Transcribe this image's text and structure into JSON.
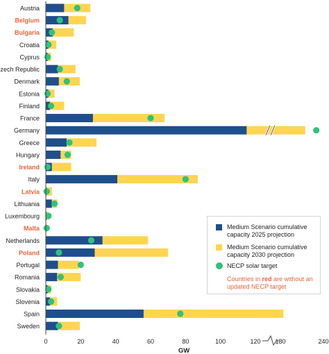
{
  "chart_data": {
    "type": "bar",
    "orientation": "horizontal",
    "stacked": true,
    "xlabel": "GW",
    "axis_break": {
      "from": 120,
      "to": 180
    },
    "xticks": [
      0,
      20,
      40,
      60,
      80,
      100,
      120,
      180,
      240
    ],
    "grid": false,
    "legend_position": "bottom-right",
    "colors": {
      "s2025": "#1f4e8c",
      "s2030": "#ffd54f",
      "target": "#2ec27e",
      "highlight": "#e8643c",
      "text": "#222222",
      "axis": "#444444"
    },
    "categories": [
      "Austria",
      "Belgium",
      "Bulgaria",
      "Croatia",
      "Cyprus",
      "Czech Republic",
      "Denmark",
      "Estonia",
      "Finland",
      "France",
      "Germany",
      "Greece",
      "Hungary",
      "Ireland",
      "Italy",
      "Latvia",
      "Lithuania",
      "Luxembourg",
      "Malta",
      "Netherlands",
      "Poland",
      "Portugal",
      "Romania",
      "Slovakia",
      "Slovenia",
      "Spain",
      "Sweden"
    ],
    "highlighted": [
      false,
      true,
      true,
      false,
      false,
      false,
      false,
      false,
      false,
      false,
      false,
      false,
      false,
      true,
      false,
      true,
      false,
      false,
      true,
      false,
      true,
      false,
      false,
      false,
      false,
      false,
      false
    ],
    "series": [
      {
        "name": "Medium Scenario cumulative capacity 2025 projection",
        "values": [
          10.5,
          13,
          4,
          1.5,
          1,
          7,
          7.5,
          1.5,
          2.5,
          27,
          115,
          12,
          8.5,
          3.5,
          41,
          0.5,
          3.5,
          0.5,
          0.3,
          32.5,
          28,
          7,
          6.5,
          1,
          2.5,
          56,
          7
        ]
      },
      {
        "name": "Medium Scenario cumulative capacity 2030 projection",
        "values": [
          15,
          10,
          12,
          4.5,
          2,
          10,
          12,
          3.5,
          8,
          41,
          39.5,
          17,
          6,
          11,
          46,
          3,
          3,
          1.2,
          0.4,
          26,
          42,
          12,
          13.5,
          2,
          4,
          68,
          12.5
        ]
      },
      {
        "name": "NECP solar target",
        "values": [
          18,
          8,
          3.5,
          1.5,
          1,
          8,
          12,
          1,
          3,
          60,
          230,
          13.5,
          12.5,
          1,
          80,
          0.5,
          5,
          1.5,
          0.5,
          26,
          7.5,
          20,
          8.5,
          1.5,
          3,
          77,
          7.5
        ]
      }
    ]
  },
  "legend": {
    "s2025_label": "Medium Scenario cumulative capacity 2025 projection",
    "s2030_label": "Medium Scenario cumulative capacity 2030 projection",
    "target_label": "NECP solar target",
    "note_prefix": "Countries in ",
    "note_red": "red",
    "note_suffix": " are without an updated NECP target"
  }
}
